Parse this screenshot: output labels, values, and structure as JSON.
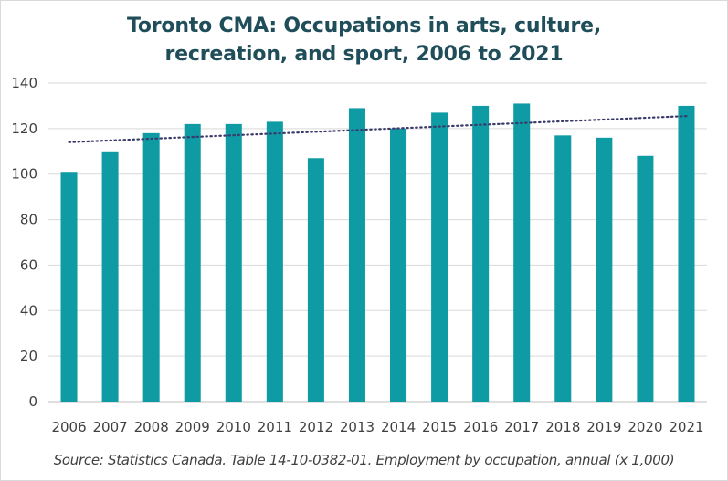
{
  "chart_data": {
    "type": "bar",
    "title_line1": "Toronto CMA: Occupations in arts, culture,",
    "title_line2": "recreation, and sport, 2006 to 2021",
    "categories": [
      "2006",
      "2007",
      "2008",
      "2009",
      "2010",
      "2011",
      "2012",
      "2013",
      "2014",
      "2015",
      "2016",
      "2017",
      "2018",
      "2019",
      "2020",
      "2021"
    ],
    "values": [
      101,
      110,
      118,
      122,
      122,
      123,
      107,
      129,
      120,
      127,
      130,
      131,
      117,
      116,
      108,
      130
    ],
    "trendline": {
      "type": "linear",
      "start": 114,
      "end": 125.5,
      "style": "dotted"
    },
    "ylim": [
      0,
      140
    ],
    "yticks": [
      0,
      20,
      40,
      60,
      80,
      100,
      120,
      140
    ],
    "grid": true,
    "legend": "none",
    "bar_color": "#0f9ba3",
    "trend_color": "#3b3b6b",
    "source": "Source: Statistics Canada. Table 14-10-0382-01. Employment by occupation, annual (x 1,000)"
  }
}
